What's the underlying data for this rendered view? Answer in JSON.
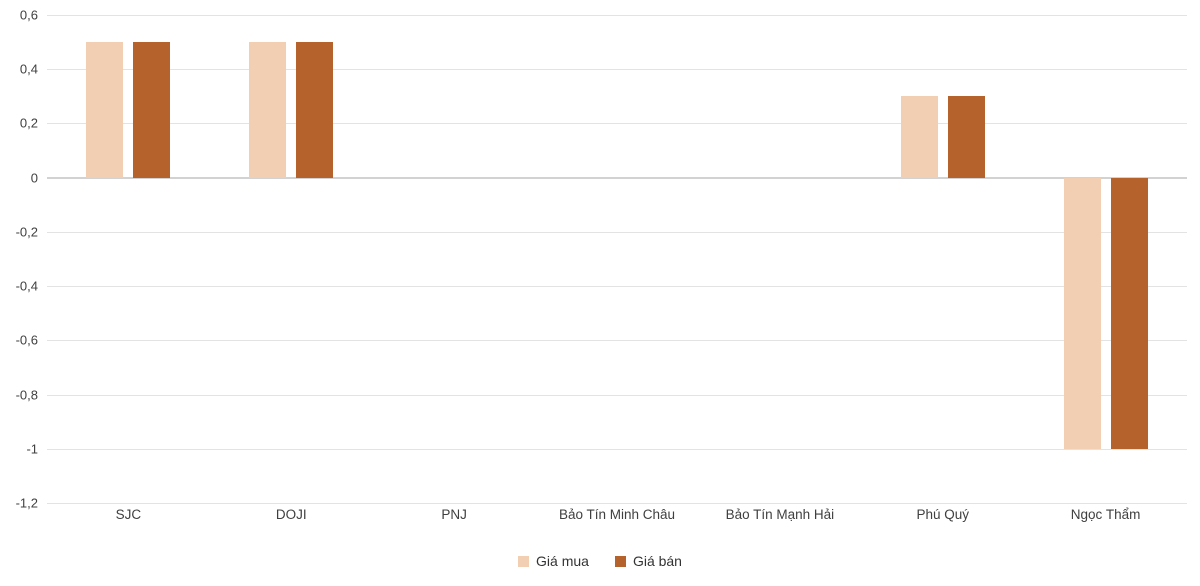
{
  "chart_data": {
    "type": "bar",
    "title": "",
    "categories": [
      "SJC",
      "DOJI",
      "PNJ",
      "Bảo Tín Minh Châu",
      "Bảo Tín Mạnh Hải",
      "Phú Quý",
      "Ngọc Thẩm"
    ],
    "series": [
      {
        "name": "Giá mua",
        "color": "#f2ceb3",
        "values": [
          0.5,
          0.5,
          0,
          0,
          0,
          0.3,
          -1
        ]
      },
      {
        "name": "Giá bán",
        "color": "#b5622c",
        "values": [
          0.5,
          0.5,
          0,
          0,
          0,
          0.3,
          -1
        ]
      }
    ],
    "ylim": [
      -1.2,
      0.6
    ],
    "yticks": [
      {
        "value": 0.6,
        "label": "0,6"
      },
      {
        "value": 0.4,
        "label": "0,4"
      },
      {
        "value": 0.2,
        "label": "0,2"
      },
      {
        "value": 0,
        "label": "0"
      },
      {
        "value": -0.2,
        "label": "-0,2"
      },
      {
        "value": -0.4,
        "label": "-0,4"
      },
      {
        "value": -0.6,
        "label": "-0,6"
      },
      {
        "value": -0.8,
        "label": "-0,8"
      },
      {
        "value": -1,
        "label": "-1"
      },
      {
        "value": -1.2,
        "label": "-1,2"
      }
    ],
    "grid": true,
    "legend_position": "bottom",
    "colors": {
      "gridline": "#e3e3e3",
      "zero_line": "#d2d2d2",
      "axis_text": "#404040"
    }
  }
}
